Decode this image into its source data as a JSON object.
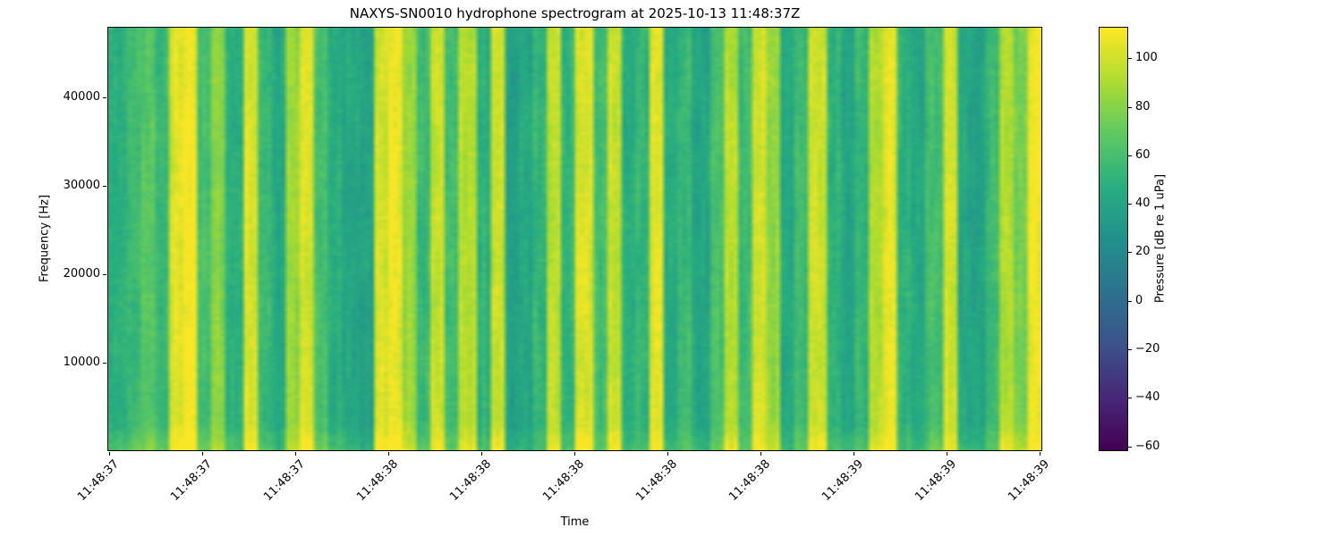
{
  "colors": {
    "background": "#ffffff",
    "text": "#000000",
    "spine": "#000000"
  },
  "chart_data": {
    "type": "heatmap",
    "title": "NAXYS-SN0010 hydrophone spectrogram at 2025-10-13 11:48:37Z",
    "xlabel": "Time",
    "ylabel": "Frequency [Hz]",
    "grid": false,
    "colormap": "viridis",
    "colormap_stops": [
      [
        0.0,
        "#440154"
      ],
      [
        0.125,
        "#482878"
      ],
      [
        0.25,
        "#3b528b"
      ],
      [
        0.375,
        "#2c728e"
      ],
      [
        0.5,
        "#21918c"
      ],
      [
        0.625,
        "#28ae80"
      ],
      [
        0.75,
        "#5ec962"
      ],
      [
        0.875,
        "#addc30"
      ],
      [
        1.0,
        "#fde725"
      ]
    ],
    "colorbar": {
      "label": "Pressure [dB re 1 uPa]",
      "vmin": -62,
      "vmax": 113,
      "ticks": [
        -60,
        -40,
        -20,
        0,
        20,
        40,
        60,
        80,
        100
      ],
      "tick_labels": [
        "−60",
        "−40",
        "−20",
        "0",
        "20",
        "40",
        "60",
        "80",
        "100"
      ]
    },
    "ylim_hz": [
      0,
      48000
    ],
    "y_ticks_hz": [
      10000,
      20000,
      30000,
      40000
    ],
    "y_tick_labels": [
      "10000",
      "20000",
      "30000",
      "40000"
    ],
    "x_tick_labels": [
      "11:48:37",
      "11:48:37",
      "11:48:37",
      "11:48:38",
      "11:48:38",
      "11:48:38",
      "11:48:38",
      "11:48:38",
      "11:48:39",
      "11:48:39",
      "11:48:39"
    ],
    "time_columns_db": [
      50,
      58,
      66,
      55,
      104,
      110,
      60,
      82,
      48,
      103,
      55,
      44,
      86,
      102,
      60,
      46,
      42,
      40,
      100,
      110,
      86,
      55,
      100,
      58,
      94,
      50,
      98,
      38,
      42,
      55,
      94,
      52,
      102,
      58,
      98,
      46,
      52,
      106,
      44,
      55,
      40,
      60,
      94,
      55,
      100,
      84,
      44,
      58,
      100,
      52,
      42,
      55,
      94,
      106,
      52,
      44,
      60,
      100,
      42,
      38,
      55,
      94,
      78,
      110
    ],
    "low_frequency_boost_db": 12,
    "values_db_approx_range": [
      38,
      112
    ]
  }
}
